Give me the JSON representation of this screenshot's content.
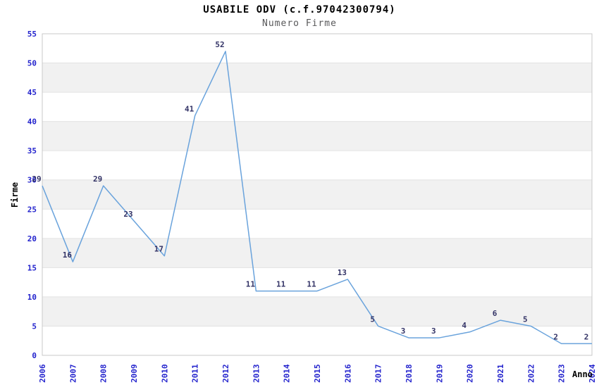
{
  "chart_data": {
    "type": "line",
    "title": "USABILE ODV (c.f.97042300794)",
    "subtitle": "Numero Firme",
    "xlabel": "Anno",
    "ylabel": "Firme",
    "categories": [
      "2006",
      "2007",
      "2008",
      "2009",
      "2010",
      "2011",
      "2012",
      "2013",
      "2014",
      "2015",
      "2016",
      "2017",
      "2018",
      "2019",
      "2020",
      "2021",
      "2022",
      "2023",
      "2024"
    ],
    "values": [
      29,
      16,
      29,
      23,
      17,
      41,
      52,
      11,
      11,
      11,
      13,
      5,
      3,
      3,
      4,
      6,
      5,
      2,
      2
    ],
    "ylim": [
      0,
      55
    ],
    "ytick_step": 5,
    "yticks": [
      0,
      5,
      10,
      15,
      20,
      25,
      30,
      35,
      40,
      45,
      50,
      55
    ],
    "grid": "horizontal gridlines with alternating gray bands",
    "legend": "none",
    "colors": {
      "line": "#6aa3dc",
      "tick_label": "#2323cd",
      "data_label": "#333366",
      "band": "#f1f1f1",
      "gridline": "#e2e2e2",
      "border": "#c9c9c9",
      "title": "#000000",
      "subtitle": "#58585a",
      "axis_label": "#000000",
      "background": "#ffffff"
    }
  }
}
